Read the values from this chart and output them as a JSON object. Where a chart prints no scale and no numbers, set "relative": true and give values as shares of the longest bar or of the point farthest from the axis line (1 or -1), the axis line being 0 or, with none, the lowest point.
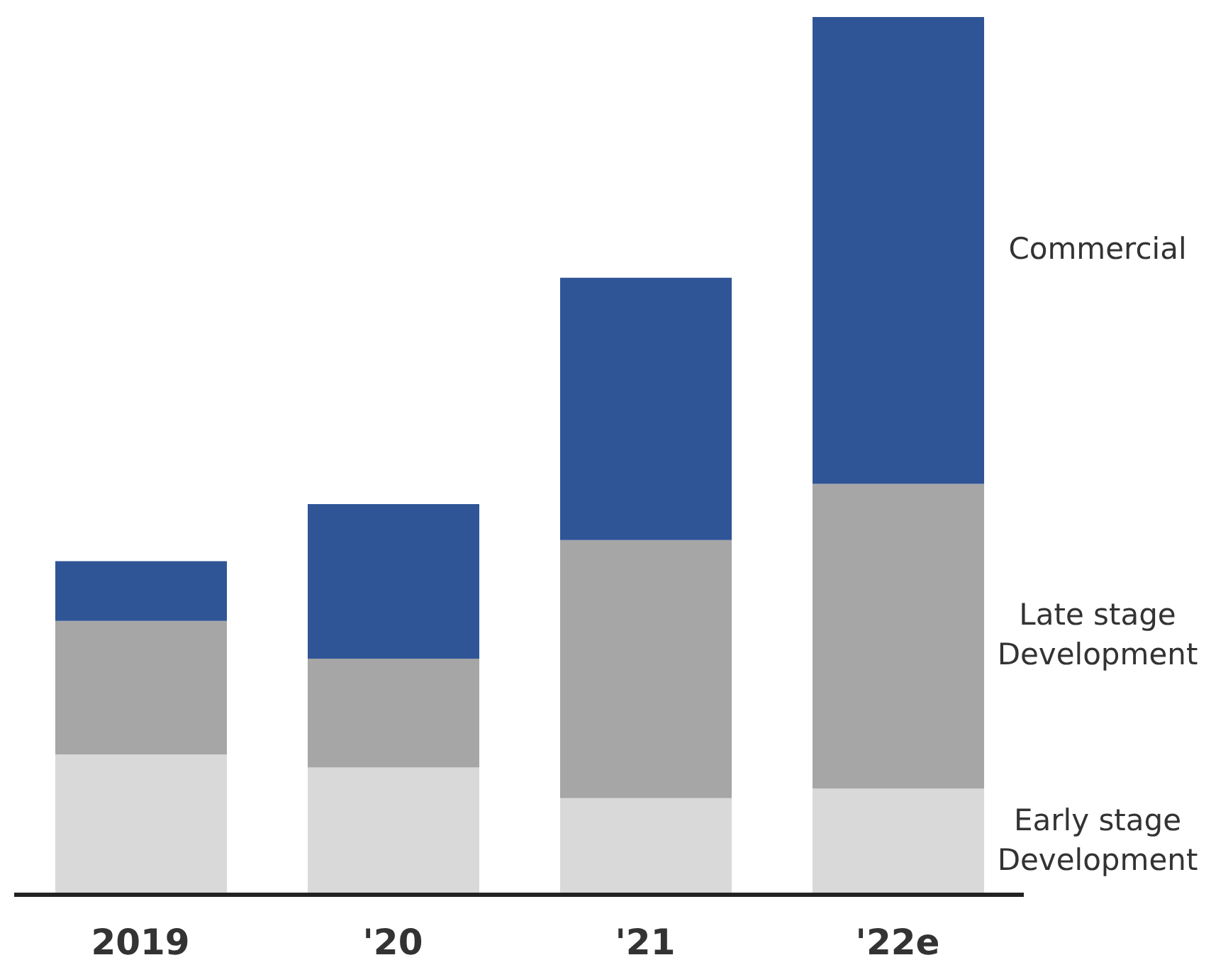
{
  "chart_data": {
    "type": "bar",
    "stacked": true,
    "relative": true,
    "categories": [
      "2019",
      "'20",
      "'21",
      "'22e"
    ],
    "series": [
      {
        "name": "Early stage Development",
        "color": "#d9d9d9",
        "values": [
          0.16,
          0.145,
          0.11,
          0.121
        ]
      },
      {
        "name": "Late stage Development",
        "color": "#a6a6a6",
        "values": [
          0.152,
          0.124,
          0.294,
          0.347
        ]
      },
      {
        "name": "Commercial",
        "color": "#2f5597",
        "values": [
          0.068,
          0.176,
          0.299,
          0.532
        ]
      }
    ],
    "legend": false
  }
}
